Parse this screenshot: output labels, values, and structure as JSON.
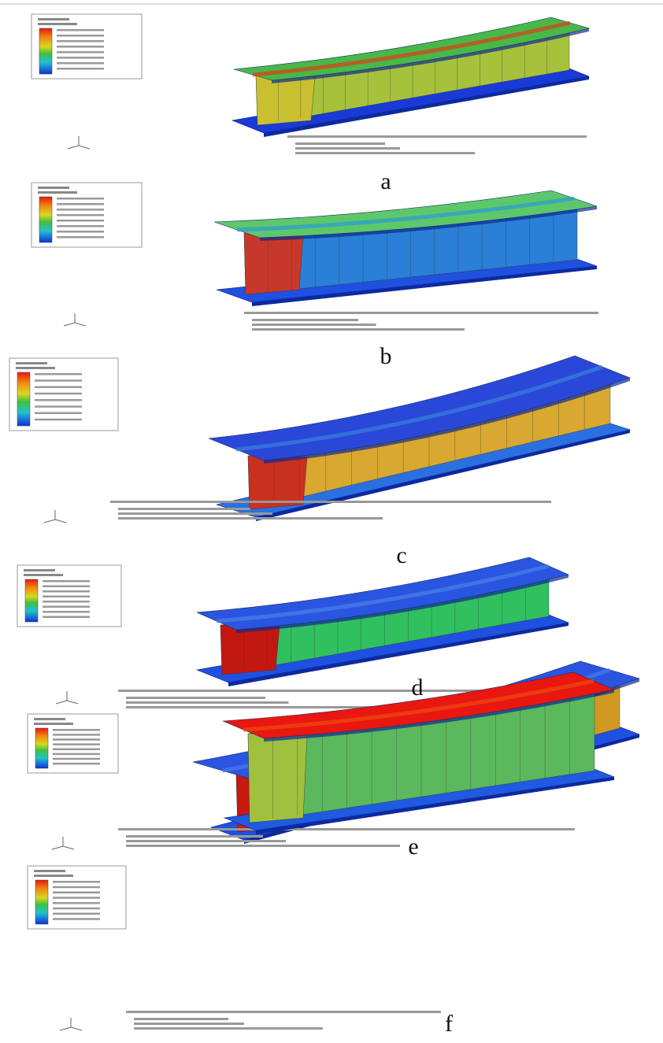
{
  "figure": {
    "panels": [
      {
        "label": "a"
      },
      {
        "label": "b"
      },
      {
        "label": "c"
      },
      {
        "label": "d"
      },
      {
        "label": "e"
      },
      {
        "label": "f"
      }
    ]
  }
}
